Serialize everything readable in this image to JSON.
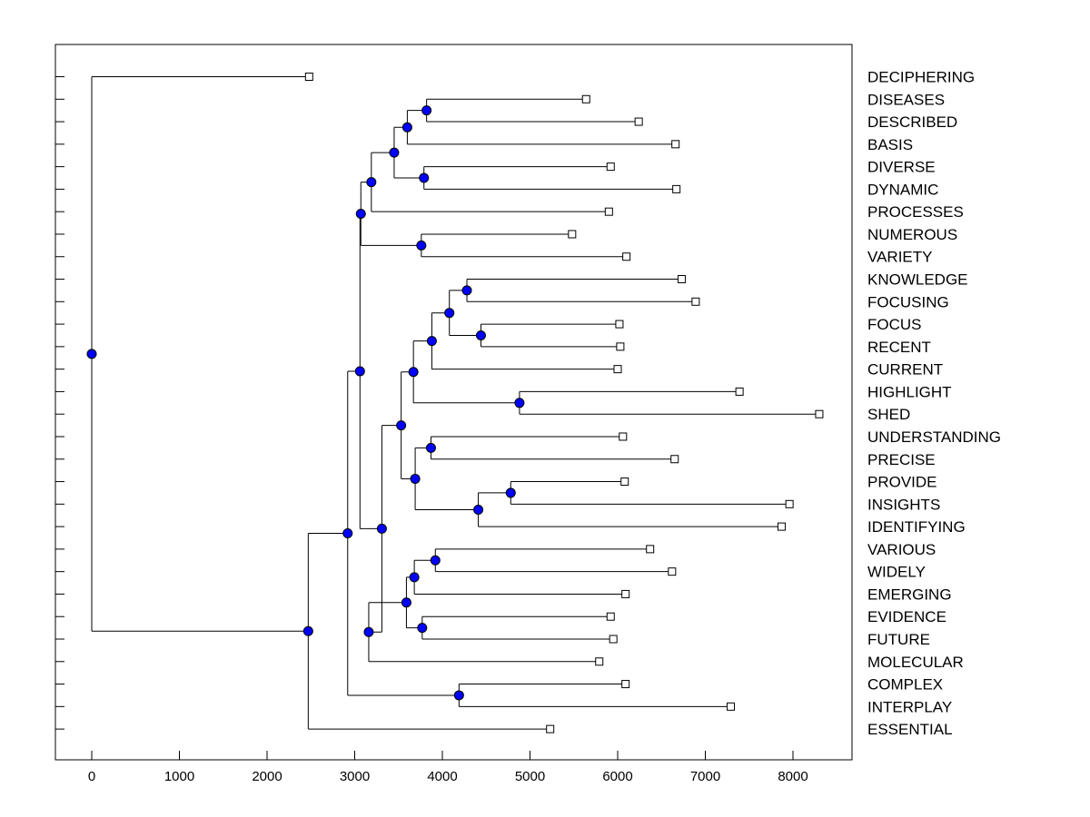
{
  "chart_data": {
    "type": "dendrogram",
    "title": "",
    "xlabel": "",
    "ylabel": "",
    "xlim": [
      -400,
      8700
    ],
    "xticks": [
      0,
      1000,
      2000,
      3000,
      4000,
      5000,
      6000,
      7000,
      8000
    ],
    "grid": false,
    "colors": {
      "node": "#0000ff",
      "line": "#000000",
      "leaf_marker": "#ffffff"
    },
    "leaves": [
      {
        "label": "DECIPHERING",
        "x": 2480
      },
      {
        "label": "DISEASES",
        "x": 5640
      },
      {
        "label": "DESCRIBED",
        "x": 6240
      },
      {
        "label": "BASIS",
        "x": 6660
      },
      {
        "label": "DIVERSE",
        "x": 5920
      },
      {
        "label": "DYNAMIC",
        "x": 6670
      },
      {
        "label": "PROCESSES",
        "x": 5900
      },
      {
        "label": "NUMEROUS",
        "x": 5480
      },
      {
        "label": "VARIETY",
        "x": 6100
      },
      {
        "label": "KNOWLEDGE",
        "x": 6730
      },
      {
        "label": "FOCUSING",
        "x": 6890
      },
      {
        "label": "FOCUS",
        "x": 6020
      },
      {
        "label": "RECENT",
        "x": 6030
      },
      {
        "label": "CURRENT",
        "x": 6000
      },
      {
        "label": "HIGHLIGHT",
        "x": 7390
      },
      {
        "label": "SHED",
        "x": 8300
      },
      {
        "label": "UNDERSTANDING",
        "x": 6060
      },
      {
        "label": "PRECISE",
        "x": 6650
      },
      {
        "label": "PROVIDE",
        "x": 6080
      },
      {
        "label": "INSIGHTS",
        "x": 7960
      },
      {
        "label": "IDENTIFYING",
        "x": 7870
      },
      {
        "label": "VARIOUS",
        "x": 6370
      },
      {
        "label": "WIDELY",
        "x": 6620
      },
      {
        "label": "EMERGING",
        "x": 6090
      },
      {
        "label": "EVIDENCE",
        "x": 5920
      },
      {
        "label": "FUTURE",
        "x": 5950
      },
      {
        "label": "MOLECULAR",
        "x": 5790
      },
      {
        "label": "COMPLEX",
        "x": 6090
      },
      {
        "label": "INTERPLAY",
        "x": 7290
      },
      {
        "label": "ESSENTIAL",
        "x": 5230
      }
    ],
    "merges": [
      {
        "id": "n1",
        "x": 3820,
        "children": [
          "DISEASES",
          "DESCRIBED"
        ]
      },
      {
        "id": "n2",
        "x": 3600,
        "children": [
          "n1",
          "BASIS"
        ]
      },
      {
        "id": "n3",
        "x": 3790,
        "children": [
          "DIVERSE",
          "DYNAMIC"
        ]
      },
      {
        "id": "n4",
        "x": 3450,
        "children": [
          "n2",
          "n3"
        ]
      },
      {
        "id": "n5",
        "x": 3190,
        "children": [
          "n4",
          "PROCESSES"
        ]
      },
      {
        "id": "n6",
        "x": 3760,
        "children": [
          "NUMEROUS",
          "VARIETY"
        ]
      },
      {
        "id": "n7",
        "x": 3070,
        "children": [
          "n5",
          "n6"
        ]
      },
      {
        "id": "n8",
        "x": 4280,
        "children": [
          "KNOWLEDGE",
          "FOCUSING"
        ]
      },
      {
        "id": "n9",
        "x": 4440,
        "children": [
          "FOCUS",
          "RECENT"
        ]
      },
      {
        "id": "n10",
        "x": 4080,
        "children": [
          "n8",
          "n9"
        ]
      },
      {
        "id": "n11",
        "x": 3880,
        "children": [
          "n10",
          "CURRENT"
        ]
      },
      {
        "id": "n12",
        "x": 4880,
        "children": [
          "HIGHLIGHT",
          "SHED"
        ]
      },
      {
        "id": "n13",
        "x": 3670,
        "children": [
          "n11",
          "n12"
        ]
      },
      {
        "id": "n14",
        "x": 3870,
        "children": [
          "UNDERSTANDING",
          "PRECISE"
        ]
      },
      {
        "id": "n15",
        "x": 4780,
        "children": [
          "PROVIDE",
          "INSIGHTS"
        ]
      },
      {
        "id": "n16",
        "x": 4410,
        "children": [
          "n15",
          "IDENTIFYING"
        ]
      },
      {
        "id": "n17",
        "x": 3690,
        "children": [
          "n14",
          "n16"
        ]
      },
      {
        "id": "n18",
        "x": 3530,
        "children": [
          "n13",
          "n17"
        ]
      },
      {
        "id": "n19",
        "x": 3920,
        "children": [
          "VARIOUS",
          "WIDELY"
        ]
      },
      {
        "id": "n20",
        "x": 3680,
        "children": [
          "n19",
          "EMERGING"
        ]
      },
      {
        "id": "n21",
        "x": 3770,
        "children": [
          "EVIDENCE",
          "FUTURE"
        ]
      },
      {
        "id": "n22",
        "x": 3590,
        "children": [
          "n20",
          "n21"
        ]
      },
      {
        "id": "n23",
        "x": 3160,
        "children": [
          "n22",
          "MOLECULAR"
        ]
      },
      {
        "id": "n24",
        "x": 3310,
        "children": [
          "n18",
          "n23"
        ]
      },
      {
        "id": "n25",
        "x": 3060,
        "children": [
          "n7",
          "n24"
        ]
      },
      {
        "id": "n26",
        "x": 4190,
        "children": [
          "COMPLEX",
          "INTERPLAY"
        ]
      },
      {
        "id": "n27",
        "x": 2920,
        "children": [
          "n25",
          "n26"
        ]
      },
      {
        "id": "n28",
        "x": 2470,
        "children": [
          "n27",
          "ESSENTIAL"
        ]
      },
      {
        "id": "n29",
        "x": 0,
        "children": [
          "DECIPHERING",
          "n28"
        ]
      }
    ]
  }
}
